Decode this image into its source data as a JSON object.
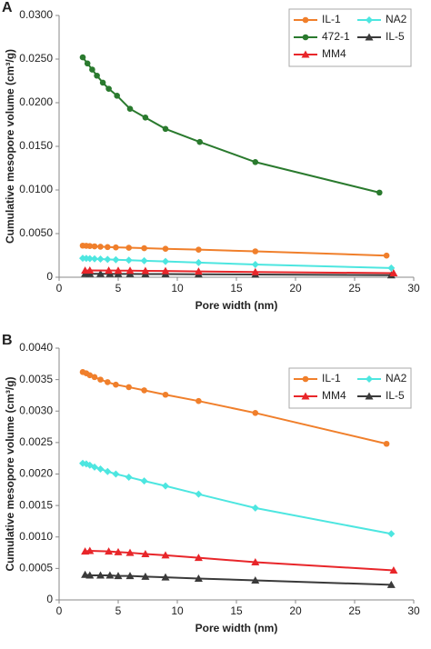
{
  "chart_data": [
    {
      "type": "line",
      "label": "A",
      "xlabel": "Pore width (nm)",
      "ylabel": "Cumulative mesopore volume (cm³/g)",
      "xlim": [
        0,
        30
      ],
      "xticks": [
        0,
        5,
        10,
        15,
        20,
        25,
        30
      ],
      "ylim": [
        0,
        0.03
      ],
      "yticks": [
        0,
        {
          "value": 0.005,
          "label": "0.0050"
        },
        {
          "value": 0.01,
          "label": "0.0100"
        },
        {
          "value": 0.015,
          "label": "0.0150"
        },
        {
          "value": 0.02,
          "label": "0.0200"
        },
        {
          "value": 0.025,
          "label": "0.0250"
        },
        {
          "value": 0.03,
          "label": "0.0300"
        }
      ],
      "series": [
        {
          "name": "IL-1",
          "color": "#f07f2b",
          "marker": "circle",
          "x": [
            2.0,
            2.3,
            2.6,
            3.0,
            3.5,
            4.1,
            4.8,
            5.9,
            7.2,
            9.0,
            11.8,
            16.6,
            27.7
          ],
          "values": [
            0.00362,
            0.0036,
            0.00357,
            0.00354,
            0.0035,
            0.00346,
            0.00342,
            0.00338,
            0.00333,
            0.00326,
            0.00316,
            0.00297,
            0.00248
          ]
        },
        {
          "name": "NA2",
          "color": "#4de6e0",
          "marker": "diamond",
          "x": [
            2.0,
            2.3,
            2.6,
            3.0,
            3.5,
            4.1,
            4.8,
            5.9,
            7.2,
            9.0,
            11.8,
            16.6,
            28.1
          ],
          "values": [
            0.00217,
            0.00216,
            0.00214,
            0.00211,
            0.00208,
            0.00204,
            0.002,
            0.00195,
            0.00189,
            0.00181,
            0.00168,
            0.00146,
            0.00105
          ]
        },
        {
          "name": "472-1",
          "color": "#2a7a2e",
          "marker": "circle",
          "x": [
            2.0,
            2.4,
            2.8,
            3.2,
            3.7,
            4.2,
            4.9,
            6.0,
            7.3,
            9.0,
            11.9,
            16.6,
            27.1
          ],
          "values": [
            0.0252,
            0.0245,
            0.0238,
            0.0231,
            0.0223,
            0.0216,
            0.0208,
            0.0193,
            0.0183,
            0.017,
            0.0155,
            0.0132,
            0.0097
          ]
        },
        {
          "name": "IL-5",
          "color": "#3a3a3a",
          "marker": "triangle",
          "x": [
            2.2,
            2.6,
            3.5,
            4.3,
            5.0,
            6.0,
            7.3,
            9.0,
            11.8,
            16.6,
            28.1
          ],
          "values": [
            0.0004,
            0.00039,
            0.00039,
            0.00039,
            0.00038,
            0.00038,
            0.00037,
            0.00036,
            0.00034,
            0.00031,
            0.00024
          ]
        },
        {
          "name": "MM4",
          "color": "#e8262a",
          "marker": "triangle",
          "x": [
            2.2,
            2.6,
            4.2,
            5.0,
            6.0,
            7.3,
            9.0,
            11.8,
            16.6,
            28.3
          ],
          "values": [
            0.00077,
            0.00078,
            0.00077,
            0.00076,
            0.00075,
            0.00073,
            0.00071,
            0.00067,
            0.0006,
            0.00047
          ]
        }
      ]
    },
    {
      "type": "line",
      "label": "B",
      "xlabel": "Pore width (nm)",
      "ylabel": "Cumulative mesopore volume (cm³/g)",
      "xlim": [
        0,
        30
      ],
      "xticks": [
        0,
        5,
        10,
        15,
        20,
        25,
        30
      ],
      "ylim": [
        0,
        0.004
      ],
      "yticks": [
        0,
        0.0005,
        {
          "value": 0.001,
          "label": "0.0010"
        },
        0.0015,
        {
          "value": 0.002,
          "label": "0.0020"
        },
        0.0025,
        {
          "value": 0.003,
          "label": "0.0030"
        },
        0.0035,
        {
          "value": 0.004,
          "label": "0.0040"
        }
      ],
      "series": [
        {
          "name": "IL-1",
          "color": "#f07f2b",
          "marker": "circle",
          "x": [
            2.0,
            2.3,
            2.6,
            3.0,
            3.5,
            4.1,
            4.8,
            5.9,
            7.2,
            9.0,
            11.8,
            16.6,
            27.7
          ],
          "values": [
            0.00362,
            0.0036,
            0.00357,
            0.00354,
            0.0035,
            0.00346,
            0.00342,
            0.00338,
            0.00333,
            0.00326,
            0.00316,
            0.00297,
            0.00248
          ]
        },
        {
          "name": "NA2",
          "color": "#4de6e0",
          "marker": "diamond",
          "x": [
            2.0,
            2.3,
            2.6,
            3.0,
            3.5,
            4.1,
            4.8,
            5.9,
            7.2,
            9.0,
            11.8,
            16.6,
            28.1
          ],
          "values": [
            0.00217,
            0.00216,
            0.00214,
            0.00211,
            0.00208,
            0.00204,
            0.002,
            0.00195,
            0.00189,
            0.00181,
            0.00168,
            0.00146,
            0.00105
          ]
        },
        {
          "name": "MM4",
          "color": "#e8262a",
          "marker": "triangle",
          "x": [
            2.2,
            2.6,
            4.2,
            5.0,
            6.0,
            7.3,
            9.0,
            11.8,
            16.6,
            28.3
          ],
          "values": [
            0.00077,
            0.00078,
            0.00077,
            0.00076,
            0.00075,
            0.00073,
            0.00071,
            0.00067,
            0.0006,
            0.00047
          ]
        },
        {
          "name": "IL-5",
          "color": "#3a3a3a",
          "marker": "triangle",
          "x": [
            2.2,
            2.6,
            3.5,
            4.3,
            5.0,
            6.0,
            7.3,
            9.0,
            11.8,
            16.6,
            28.1
          ],
          "values": [
            0.0004,
            0.00039,
            0.00039,
            0.00039,
            0.00038,
            0.00038,
            0.00037,
            0.00036,
            0.00034,
            0.00031,
            0.00024
          ]
        }
      ]
    }
  ]
}
